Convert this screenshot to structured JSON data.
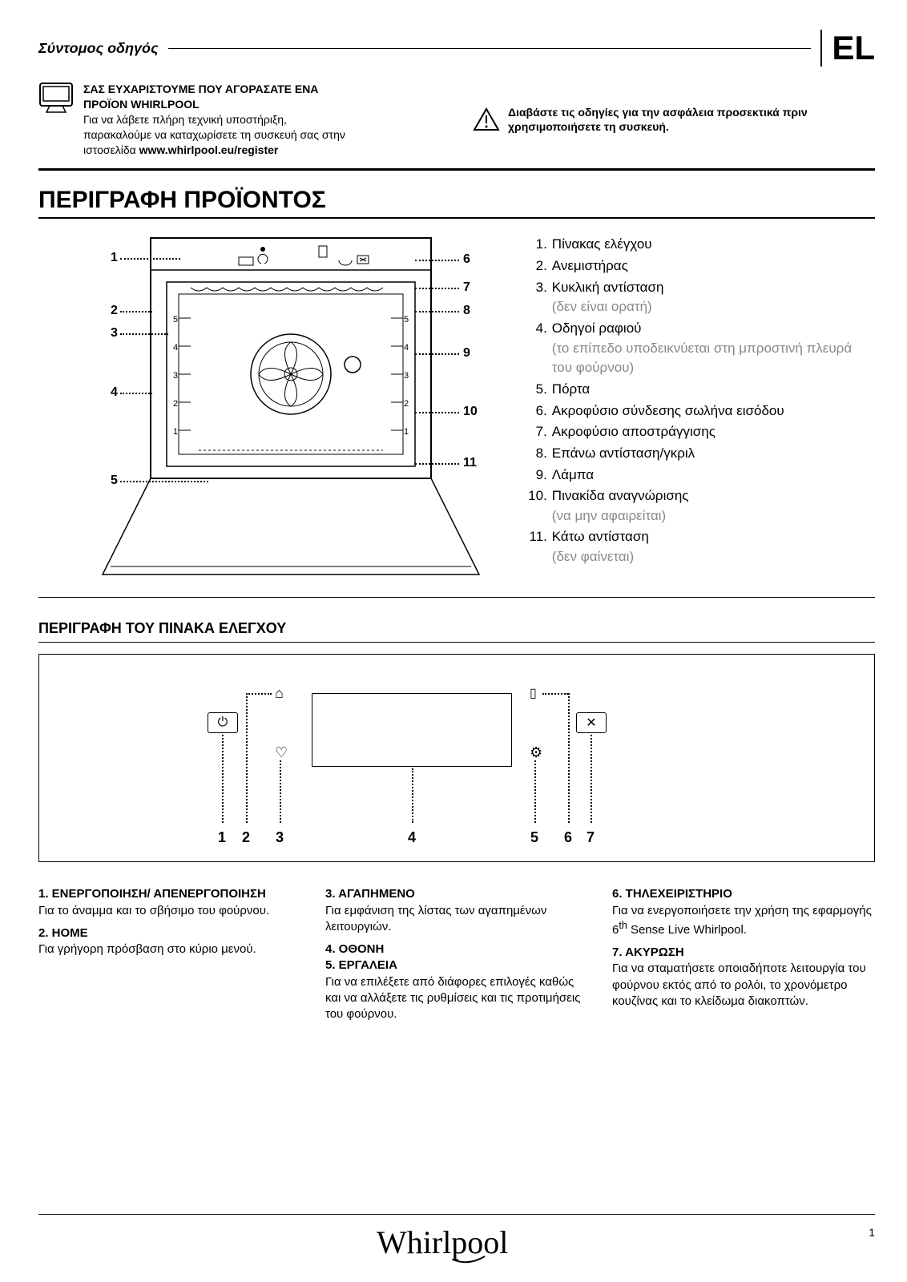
{
  "header": {
    "guide_title": "Σύντομος οδηγός",
    "lang": "EL"
  },
  "intro": {
    "thanks_line1": "ΣΑΣ ΕΥΧΑΡΙΣΤΟΥΜΕ ΠΟΥ ΑΓΟΡΑΣΑΤΕ ΕΝΑ",
    "thanks_line2": "ΠΡΟΪΟΝ WHIRLPOOL",
    "support_line1": "Για να λάβετε πλήρη τεχνική υποστήριξη,",
    "support_line2": "παρακαλούμε να καταχωρίσετε τη συσκευή σας στην",
    "support_line3_prefix": "ιστοσελίδα ",
    "register_url": "www.whirlpool.eu/register",
    "safety": "Διαβάστε τις οδηγίες για την ασφάλεια προσεκτικά πριν χρησιμοποιήσετε τη συσκευή."
  },
  "product": {
    "title": "ΠΕΡΙΓΡΑΦΗ ΠΡΟΪΟΝΤΟΣ",
    "left_callouts": [
      "1",
      "2",
      "3",
      "4",
      "5"
    ],
    "right_callouts": [
      "6",
      "7",
      "8",
      "9",
      "10",
      "11"
    ],
    "parts": [
      {
        "n": "1.",
        "label": "Πίνακας ελέγχου",
        "note": ""
      },
      {
        "n": "2.",
        "label": "Ανεμιστήρας",
        "note": ""
      },
      {
        "n": "3.",
        "label": "Κυκλική αντίσταση",
        "note": "(δεν είναι ορατή)"
      },
      {
        "n": "4.",
        "label": "Οδηγοί ραφιού",
        "note": "(το επίπεδο υποδεικνύεται στη μπροστινή πλευρά του φούρνου)"
      },
      {
        "n": "5.",
        "label": "Πόρτα",
        "note": ""
      },
      {
        "n": "6.",
        "label": "Ακροφύσιο σύνδεσης σωλήνα εισόδου",
        "note": ""
      },
      {
        "n": "7.",
        "label": "Ακροφύσιο αποστράγγισης",
        "note": ""
      },
      {
        "n": "8.",
        "label": "Επάνω αντίσταση/γκριλ",
        "note": ""
      },
      {
        "n": "9.",
        "label": "Λάμπα",
        "note": ""
      },
      {
        "n": "10.",
        "label": "Πινακίδα αναγνώρισης",
        "note": "(να μην αφαιρείται)"
      },
      {
        "n": "11.",
        "label": "Κάτω αντίσταση",
        "note": "(δεν φαίνεται)"
      }
    ]
  },
  "panel": {
    "title": "ΠΕΡΙΓΡΑΦΗ ΤΟΥ ΠΙΝΑΚΑ ΕΛΕΓΧΟΥ",
    "numbers": [
      "1",
      "2",
      "3",
      "4",
      "5",
      "6",
      "7"
    ],
    "icons": {
      "power": "⏻",
      "home": "⌂",
      "heart": "♡",
      "tools": "⚙",
      "phone": "▯",
      "cancel": "✕"
    },
    "descriptions": {
      "c1_h1": "1. ΕΝΕΡΓΟΠΟΙΗΣΗ/ ΑΠΕΝΕΡΓΟΠΟΙΗΣΗ",
      "c1_p1": "Για το άναμμα και το σβήσιμο του φούρνου.",
      "c1_h2": "2. HOME",
      "c1_p2": "Για γρήγορη πρόσβαση στο κύριο μενού.",
      "c2_h1": "3. ΑΓΑΠΗΜΕΝΟ",
      "c2_p1": "Για εμφάνιση της λίστας των αγαπημένων λειτουργιών.",
      "c2_h2": "4. ΟΘΟΝΗ",
      "c2_h3": "5. ΕΡΓΑΛΕΙΑ",
      "c2_p3": "Για να επιλέξετε από διάφορες επιλογές καθώς και να αλλάξετε τις ρυθμίσεις και τις προτιμήσεις του φούρνου.",
      "c3_h1": "6. ΤΗΛΕΧΕΙΡΙΣΤΗΡΙΟ",
      "c3_p1_a": "Για να ενεργοποιήσετε την χρήση της εφαρμογής 6",
      "c3_p1_sup": "th",
      "c3_p1_b": " Sense Live Whirlpool.",
      "c3_h2": "7. ΑΚΥΡΩΣΗ",
      "c3_p2": "Για να σταματήσετε οποιαδήποτε λειτουργία του φούρνου εκτός από το ρολόι, το χρονόμετρο κουζίνας και το κλείδωμα διακοπτών."
    }
  },
  "footer": {
    "brand": "Whirlpool",
    "page": "1"
  },
  "colors": {
    "text": "#000000",
    "note": "#888888",
    "bg": "#ffffff"
  }
}
